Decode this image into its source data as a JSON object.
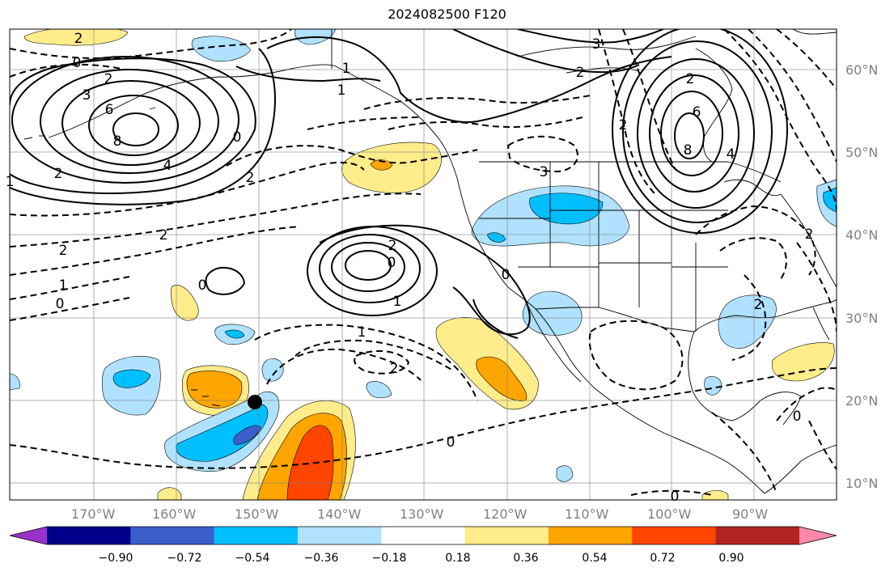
{
  "title": "2024082500 F120",
  "lat_labels": [
    "60°N",
    "50°N",
    "40°N",
    "30°N",
    "20°N",
    "10°N"
  ],
  "lon_labels": [
    "170°W",
    "160°W",
    "150°W",
    "140°W",
    "130°W",
    "120°W",
    "110°W",
    "100°W",
    "90°W"
  ],
  "colorbar": {
    "ticks": [
      "−0.90",
      "−0.72",
      "−0.54",
      "−0.36",
      "−0.18",
      "0.18",
      "0.36",
      "0.54",
      "0.72",
      "0.90"
    ],
    "colors": [
      "#9932cc",
      "#00008b",
      "#3a5fcd",
      "#00bfff",
      "#b0e2ff",
      "#ffffff",
      "#ffec8b",
      "#ffa500",
      "#ff4500",
      "#b22222",
      "#ff88aa"
    ]
  },
  "contour_labels": [
    "2",
    "0",
    "2",
    "3",
    "6",
    "8",
    "4",
    "0",
    "1",
    "2",
    "2",
    "1",
    "3",
    "2",
    "2",
    "6",
    "8",
    "4",
    "1",
    "2",
    "2",
    "2",
    "2",
    "0",
    "1",
    "0",
    "0",
    "1",
    "1",
    "2",
    "3",
    "2",
    "0",
    "0",
    "0",
    "2",
    "0"
  ]
}
